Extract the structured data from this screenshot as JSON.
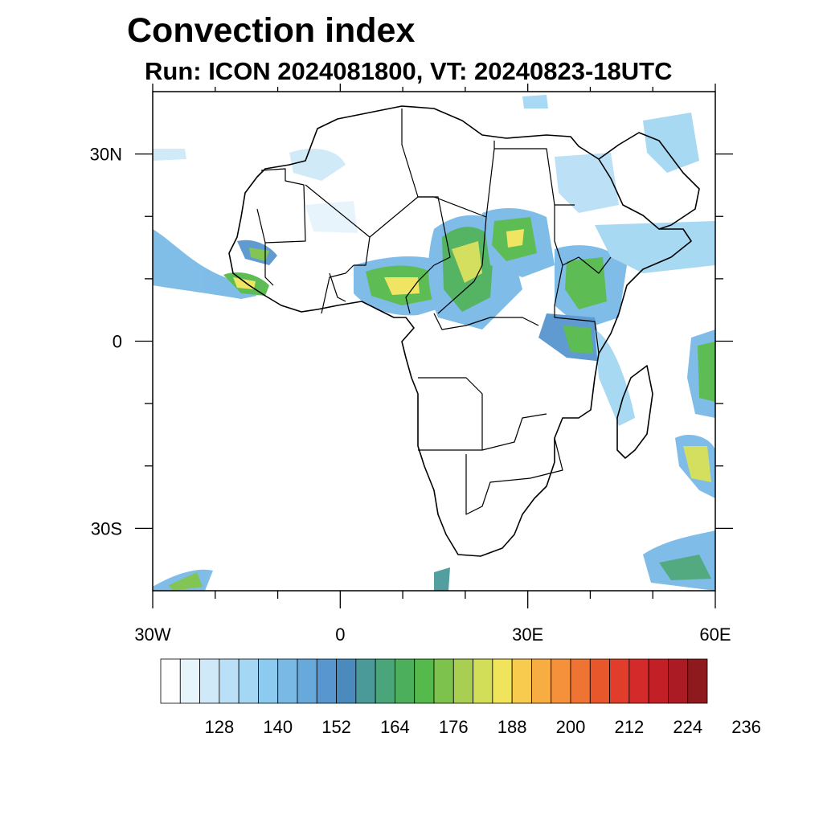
{
  "title": "Convection index",
  "subtitle": "Run: ICON 2024081800,  VT: 20240823-18UTC",
  "map": {
    "lon_range": [
      -30,
      60
    ],
    "lat_range": [
      -40,
      40
    ],
    "x_ticks": [
      {
        "lon": -30,
        "label": "30W"
      },
      {
        "lon": 0,
        "label": "0"
      },
      {
        "lon": 30,
        "label": "30E"
      },
      {
        "lon": 60,
        "label": "60E"
      }
    ],
    "y_ticks": [
      {
        "lat": 30,
        "label": "30N"
      },
      {
        "lat": 0,
        "label": "0"
      },
      {
        "lat": -30,
        "label": "30S"
      }
    ],
    "minor_lon": [
      -20,
      -10,
      10,
      20,
      40,
      50
    ],
    "minor_lat": [
      20,
      10,
      -10,
      -20
    ]
  },
  "colorbar": {
    "colors": [
      "#ffffff",
      "#e6f4fc",
      "#cfe9f8",
      "#b9e0f6",
      "#a4d7f3",
      "#8ccbef",
      "#79b9e6",
      "#68a9dc",
      "#5796cf",
      "#4a8abd",
      "#4a9a9a",
      "#4aa67a",
      "#4caf5c",
      "#55b94b",
      "#7cc24c",
      "#a8cf52",
      "#d2de57",
      "#f0e45a",
      "#f8ca4e",
      "#f8ad43",
      "#f4913a",
      "#ef7332",
      "#e8562c",
      "#e03e2a",
      "#d42a29",
      "#c21f27",
      "#ab1b23",
      "#8f1a1d"
    ],
    "labels": [
      "128",
      "140",
      "152",
      "164",
      "176",
      "188",
      "200",
      "212",
      "224",
      "236"
    ]
  }
}
